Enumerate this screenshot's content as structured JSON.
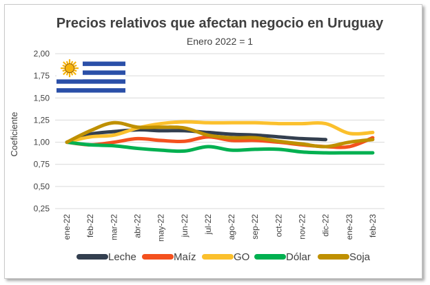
{
  "chart_data": {
    "type": "line",
    "title": "Precios relativos que afectan negocio en Uruguay",
    "subtitle": "Enero 2022 = 1",
    "xlabel": "",
    "ylabel": "Coeficiente",
    "ylim": [
      0.25,
      2.0
    ],
    "yticks": [
      "0,25",
      "0,50",
      "0,75",
      "1,00",
      "1,25",
      "1,50",
      "1,75",
      "2,00"
    ],
    "categories": [
      "ene-22",
      "feb-22",
      "mar-22",
      "abr-22",
      "may-22",
      "jun-22",
      "jul-22",
      "ago-22",
      "sep-22",
      "oct-22",
      "nov-22",
      "dic-22",
      "ene-23",
      "feb-23"
    ],
    "grid": true,
    "legend_position": "bottom",
    "series": [
      {
        "name": "Leche",
        "color": "#333f4f",
        "values": [
          1.0,
          1.09,
          1.12,
          1.14,
          1.13,
          1.13,
          1.11,
          1.09,
          1.08,
          1.06,
          1.04,
          1.03,
          null,
          null
        ]
      },
      {
        "name": "Maíz",
        "color": "#f4511e",
        "values": [
          1.0,
          0.97,
          1.0,
          1.04,
          1.02,
          1.01,
          1.06,
          1.02,
          1.02,
          1.0,
          0.97,
          0.95,
          0.95,
          1.05
        ]
      },
      {
        "name": "GO",
        "color": "#fbc02d",
        "values": [
          1.0,
          1.06,
          1.08,
          1.16,
          1.21,
          1.23,
          1.22,
          1.22,
          1.22,
          1.21,
          1.21,
          1.21,
          1.1,
          1.11
        ]
      },
      {
        "name": "Dólar",
        "color": "#00b050",
        "values": [
          1.0,
          0.97,
          0.96,
          0.93,
          0.91,
          0.9,
          0.95,
          0.91,
          0.92,
          0.92,
          0.89,
          0.88,
          0.88,
          0.88
        ]
      },
      {
        "name": "Soja",
        "color": "#bf9000",
        "values": [
          1.0,
          1.13,
          1.22,
          1.17,
          1.17,
          1.16,
          1.08,
          1.05,
          1.05,
          1.01,
          0.98,
          0.95,
          1.0,
          1.03
        ]
      }
    ]
  },
  "flag": {
    "name": "uruguay-flag",
    "colors": {
      "white": "#ffffff",
      "blue": "#2a4fa8",
      "sun": "#f6b40e",
      "sun_outline": "#7a4a10"
    }
  }
}
